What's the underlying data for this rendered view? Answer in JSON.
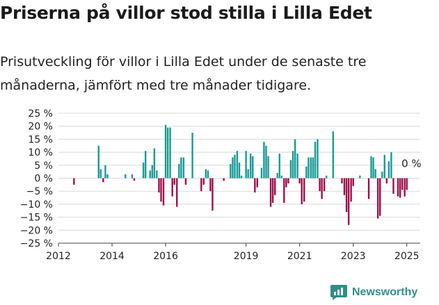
{
  "title": "Priserna på villor stod stilla i Lilla Edet",
  "subtitle": "Prisutveckling för villor i Lilla Edet under de senaste tre månaderna, jämfört med tre månader tidigare.",
  "brand": "Newsworthy",
  "colors": {
    "positive": "#1a9a96",
    "negative": "#9e0f4b",
    "grid": "#d8d8d8",
    "text": "#222222"
  },
  "chart_data": {
    "type": "bar",
    "title": "",
    "xlabel": "",
    "ylabel": "",
    "ylim": [
      -25,
      25
    ],
    "yticks": [
      25,
      20,
      15,
      10,
      5,
      0,
      -5,
      -10,
      -15,
      -20,
      -25
    ],
    "ytick_labels": [
      "25 %",
      "20 %",
      "15 %",
      "10 %",
      "5 %",
      "0 %",
      "−5 %",
      "−10 %",
      "−15 %",
      "−20 %",
      "−25 %"
    ],
    "xticks": [
      2012,
      2014,
      2016,
      2019,
      2021,
      2023,
      2025
    ],
    "xtick_labels": [
      "2012",
      "2014",
      "2016",
      "2019",
      "2021",
      "2023",
      "2025"
    ],
    "annotation": {
      "x": 2024.75,
      "y": 0,
      "label": "0 %"
    },
    "series": [
      {
        "name": "Prisutveckling",
        "points": [
          [
            2012.58,
            -2.5
          ],
          [
            2013.5,
            12.5
          ],
          [
            2013.58,
            3.5
          ],
          [
            2013.67,
            -1.5
          ],
          [
            2013.75,
            5
          ],
          [
            2013.83,
            1.5
          ],
          [
            2014.5,
            1.5
          ],
          [
            2014.75,
            1.5
          ],
          [
            2014.83,
            -1
          ],
          [
            2015.17,
            6
          ],
          [
            2015.25,
            10.5
          ],
          [
            2015.42,
            3
          ],
          [
            2015.5,
            5
          ],
          [
            2015.58,
            11.5
          ],
          [
            2015.67,
            3
          ],
          [
            2015.75,
            -5.5
          ],
          [
            2015.83,
            -9
          ],
          [
            2015.92,
            -10.5
          ],
          [
            2016.0,
            20.5
          ],
          [
            2016.08,
            19.5
          ],
          [
            2016.17,
            19.5
          ],
          [
            2016.25,
            -7
          ],
          [
            2016.33,
            -2.5
          ],
          [
            2016.42,
            -11
          ],
          [
            2016.5,
            5.5
          ],
          [
            2016.58,
            8
          ],
          [
            2016.67,
            8
          ],
          [
            2016.75,
            -2.5
          ],
          [
            2017.0,
            17.5
          ],
          [
            2017.33,
            -5
          ],
          [
            2017.42,
            -2.5
          ],
          [
            2017.5,
            3.5
          ],
          [
            2017.58,
            3
          ],
          [
            2017.67,
            -5
          ],
          [
            2017.75,
            -12.5
          ],
          [
            2018.17,
            -1
          ],
          [
            2018.42,
            5.5
          ],
          [
            2018.5,
            8
          ],
          [
            2018.58,
            9
          ],
          [
            2018.67,
            10.5
          ],
          [
            2018.75,
            6
          ],
          [
            2018.83,
            1
          ],
          [
            2019.0,
            10.5
          ],
          [
            2019.08,
            3.5
          ],
          [
            2019.17,
            9.5
          ],
          [
            2019.25,
            8.5
          ],
          [
            2019.33,
            -5.5
          ],
          [
            2019.42,
            -3.5
          ],
          [
            2019.58,
            4
          ],
          [
            2019.67,
            14
          ],
          [
            2019.75,
            12.5
          ],
          [
            2019.83,
            8.5
          ],
          [
            2019.92,
            -11
          ],
          [
            2020.0,
            -9.5
          ],
          [
            2020.08,
            -6.5
          ],
          [
            2020.17,
            2
          ],
          [
            2020.25,
            9.5
          ],
          [
            2020.33,
            1
          ],
          [
            2020.42,
            -9.5
          ],
          [
            2020.5,
            -3.5
          ],
          [
            2020.58,
            -2
          ],
          [
            2020.67,
            7
          ],
          [
            2020.75,
            10.5
          ],
          [
            2020.83,
            15
          ],
          [
            2020.92,
            9.5
          ],
          [
            2021.0,
            -2
          ],
          [
            2021.08,
            -10
          ],
          [
            2021.17,
            -9
          ],
          [
            2021.25,
            4.5
          ],
          [
            2021.33,
            8
          ],
          [
            2021.42,
            8
          ],
          [
            2021.5,
            8
          ],
          [
            2021.58,
            14
          ],
          [
            2021.67,
            15
          ],
          [
            2021.75,
            -5
          ],
          [
            2021.83,
            -8
          ],
          [
            2021.92,
            -5
          ],
          [
            2022.0,
            1
          ],
          [
            2022.25,
            18
          ],
          [
            2022.58,
            -2
          ],
          [
            2022.67,
            -6.5
          ],
          [
            2022.75,
            -13
          ],
          [
            2022.83,
            -18
          ],
          [
            2022.92,
            -9
          ],
          [
            2023.0,
            -3
          ],
          [
            2023.25,
            1
          ],
          [
            2023.58,
            -8
          ],
          [
            2023.67,
            8.5
          ],
          [
            2023.75,
            8
          ],
          [
            2023.83,
            3.5
          ],
          [
            2023.92,
            -15.5
          ],
          [
            2024.0,
            -14.5
          ],
          [
            2024.08,
            2.5
          ],
          [
            2024.17,
            9
          ],
          [
            2024.25,
            -2
          ],
          [
            2024.33,
            6.5
          ],
          [
            2024.42,
            10
          ],
          [
            2024.5,
            -6
          ],
          [
            2024.67,
            -7
          ],
          [
            2024.75,
            -7.5
          ],
          [
            2024.83,
            -4.5
          ],
          [
            2024.92,
            -7
          ],
          [
            2025.0,
            -4.5
          ],
          [
            2025.08,
            0
          ]
        ]
      }
    ]
  }
}
